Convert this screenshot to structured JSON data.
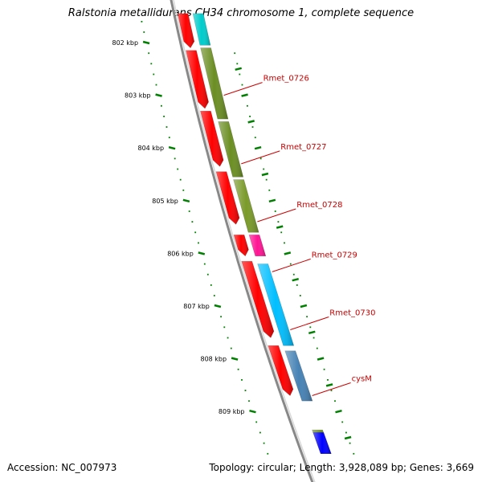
{
  "title": "Ralstonia metallidurans CH34 chromosome 1, complete sequence",
  "footer": {
    "accession": "Accession: NC_007973",
    "summary": "Topology: circular; Length: 3,928,089 bp; Genes: 3,669"
  },
  "ticks": [
    {
      "label": "802 kbp",
      "kbp": 802
    },
    {
      "label": "803 kbp",
      "kbp": 803
    },
    {
      "label": "804 kbp",
      "kbp": 804
    },
    {
      "label": "805 kbp",
      "kbp": 805
    },
    {
      "label": "806 kbp",
      "kbp": 806
    },
    {
      "label": "807 kbp",
      "kbp": 807
    },
    {
      "label": "808 kbp",
      "kbp": 808
    },
    {
      "label": "809 kbp",
      "kbp": 809
    }
  ],
  "forward_genes": [
    {
      "start": 801.45,
      "end": 802.05,
      "color": "#00cccc"
    },
    {
      "start": 802.1,
      "end": 803.45,
      "color": "#6b8e23"
    },
    {
      "start": 803.5,
      "end": 804.55,
      "color": "#6b8e23"
    },
    {
      "start": 804.6,
      "end": 805.6,
      "color": "#7a9a2a"
    },
    {
      "start": 805.65,
      "end": 806.05,
      "color": "#ff1493"
    },
    {
      "start": 806.2,
      "end": 807.75,
      "color": "#00bfff"
    },
    {
      "start": 807.85,
      "end": 808.8,
      "color": "#4682b4"
    },
    {
      "start": 809.35,
      "end": 809.8,
      "color": "#6b8e23"
    },
    {
      "start": 809.4,
      "end": 809.8,
      "color": "#0000ff"
    }
  ],
  "reverse_genes": [
    {
      "start": 801.45,
      "end": 802.1,
      "color": "#ff0000"
    },
    {
      "start": 802.15,
      "end": 803.25,
      "color": "#ff0000"
    },
    {
      "start": 803.3,
      "end": 804.35,
      "color": "#ff0000"
    },
    {
      "start": 804.45,
      "end": 805.45,
      "color": "#ff0000"
    },
    {
      "start": 805.65,
      "end": 806.05,
      "color": "#ff0000"
    },
    {
      "start": 806.15,
      "end": 807.6,
      "color": "#ff0000"
    },
    {
      "start": 807.75,
      "end": 808.7,
      "color": "#ff0000"
    }
  ],
  "gene_labels": [
    {
      "name": "Rmet_0726",
      "kbp": 803.0
    },
    {
      "name": "Rmet_0727",
      "kbp": 804.3
    },
    {
      "name": "Rmet_0728",
      "kbp": 805.4
    },
    {
      "name": "Rmet_0729",
      "kbp": 806.35
    },
    {
      "name": "Rmet_0730",
      "kbp": 807.45
    },
    {
      "name": "cysM",
      "kbp": 808.7
    }
  ],
  "colors": {
    "backbone": "#888888",
    "ticks": "#008000",
    "label_line": "#cc0000"
  }
}
